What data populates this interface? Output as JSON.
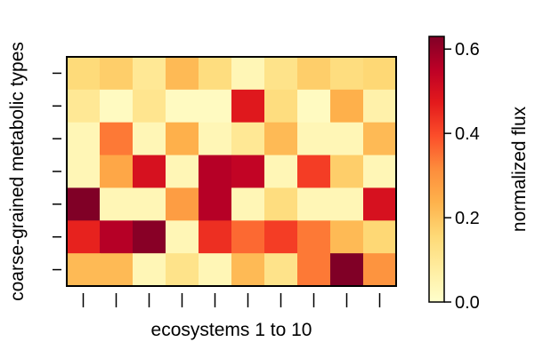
{
  "chart_data": {
    "type": "heatmap",
    "xlabel": "ecosystems 1 to 10",
    "ylabel": "coarse-grained metabolic types",
    "colorbar_label": "normalized flux",
    "colorbar_ticks": [
      "0.0",
      "0.2",
      "0.4",
      "0.6"
    ],
    "colorbar_tick_values": [
      0.0,
      0.2,
      0.4,
      0.6
    ],
    "color_range": [
      0.0,
      0.63
    ],
    "colormap": [
      "#ffffcc",
      "#ffeda0",
      "#fed976",
      "#feb24c",
      "#fd8d3c",
      "#fc4e2a",
      "#e31a1c",
      "#bd0026",
      "#800026"
    ],
    "columns": 10,
    "rows": 7,
    "values": [
      [
        0.15,
        0.18,
        0.1,
        0.22,
        0.14,
        0.04,
        0.12,
        0.18,
        0.14,
        0.16
      ],
      [
        0.1,
        0.02,
        0.11,
        0.02,
        0.02,
        0.48,
        0.14,
        0.02,
        0.24,
        0.06
      ],
      [
        0.04,
        0.34,
        0.04,
        0.24,
        0.04,
        0.1,
        0.22,
        0.04,
        0.04,
        0.22
      ],
      [
        0.04,
        0.26,
        0.5,
        0.04,
        0.56,
        0.54,
        0.04,
        0.42,
        0.18,
        0.04
      ],
      [
        0.63,
        0.04,
        0.04,
        0.28,
        0.56,
        0.04,
        0.14,
        0.04,
        0.04,
        0.5
      ],
      [
        0.46,
        0.56,
        0.62,
        0.04,
        0.44,
        0.36,
        0.42,
        0.34,
        0.22,
        0.16
      ],
      [
        0.22,
        0.22,
        0.04,
        0.12,
        0.04,
        0.22,
        0.12,
        0.34,
        0.63,
        0.3
      ]
    ]
  }
}
